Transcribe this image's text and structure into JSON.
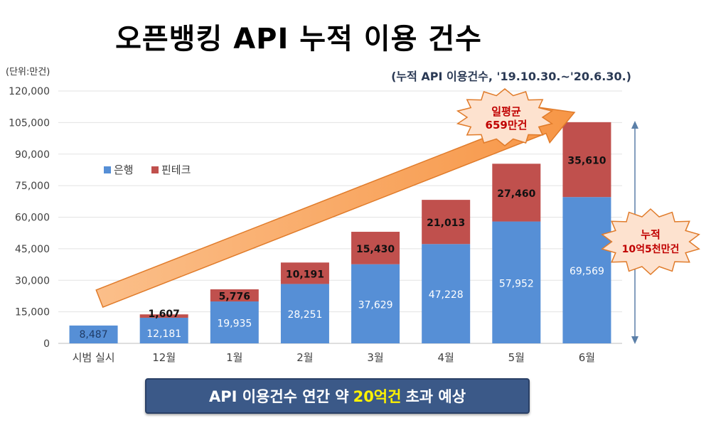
{
  "title": "오픈뱅킹 API 누적 이용 건수",
  "unit_label": "(단위:만건)",
  "period_note": "(누적 API 이용건수, '19.10.30.~'20.6.30.)",
  "colors": {
    "bank": "#568fd6",
    "fintech": "#c0504d",
    "arrow": "#f79646",
    "burst": "#fde2cf",
    "burst_text": "#c00000",
    "banner": "#3b5988",
    "highlight": "#fff200"
  },
  "callouts": {
    "daily_avg": {
      "line1": "일평균",
      "line2": "659만건"
    },
    "cumulative": {
      "line1": "누적",
      "line2": "10억5천만건"
    }
  },
  "banner": {
    "prefix": "API 이용건수 연간 약",
    "highlight": "20억건",
    "suffix": "초과 예상"
  },
  "chart_data": {
    "type": "bar",
    "stacked": true,
    "categories": [
      "시범 실시",
      "12월",
      "1월",
      "2월",
      "3월",
      "4월",
      "5월",
      "6월"
    ],
    "series": [
      {
        "name": "은행",
        "values": [
          8487,
          12181,
          19935,
          28251,
          37629,
          47228,
          57952,
          69569
        ],
        "labels": [
          "8,487",
          "12,181",
          "19,935",
          "28,251",
          "37,629",
          "47,228",
          "57,952",
          "69,569"
        ]
      },
      {
        "name": "핀테크",
        "values": [
          0,
          1607,
          5776,
          10191,
          15430,
          21013,
          27460,
          35610
        ],
        "labels": [
          "",
          "1,607",
          "5,776",
          "10,191",
          "15,430",
          "21,013",
          "27,460",
          "35,610"
        ]
      }
    ],
    "yticks": [
      "0",
      "15,000",
      "30,000",
      "45,000",
      "60,000",
      "75,000",
      "90,000",
      "105,000",
      "120,000"
    ],
    "ylim": [
      0,
      120000
    ],
    "grid": true,
    "legend_position": "upper-left"
  }
}
